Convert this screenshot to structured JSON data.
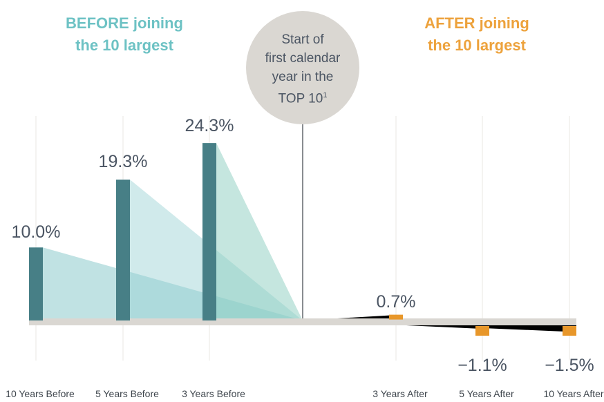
{
  "header": {
    "before_line1": "BEFORE joining",
    "before_line2": "the 10 largest",
    "after_line1": "AFTER joining",
    "after_line2": "the 10 largest"
  },
  "center_label": {
    "line1": "Start of",
    "line2": "first calendar",
    "line3": "year in the",
    "line4": "TOP 10",
    "footnote": "1"
  },
  "colors": {
    "before_header": "#6dc2c4",
    "after_header": "#eda23c",
    "before_bar": "#477f86",
    "after_bar": "#e8972a",
    "baseline": "#dad7d2",
    "circle": "#dad7d2",
    "value_label": "#4b5563"
  },
  "chart_data": {
    "type": "bar",
    "categories": [
      "10 Years Before",
      "5 Years Before",
      "3 Years Before",
      "3 Years After",
      "5 Years After",
      "10 Years After"
    ],
    "values": [
      10.0,
      19.3,
      24.3,
      0.7,
      -1.1,
      -1.5
    ],
    "value_labels": [
      "10.0%",
      "19.3%",
      "24.3%",
      "0.7%",
      "−1.1%",
      "−1.5%"
    ],
    "groups": [
      "before",
      "before",
      "before",
      "after",
      "after",
      "after"
    ]
  }
}
